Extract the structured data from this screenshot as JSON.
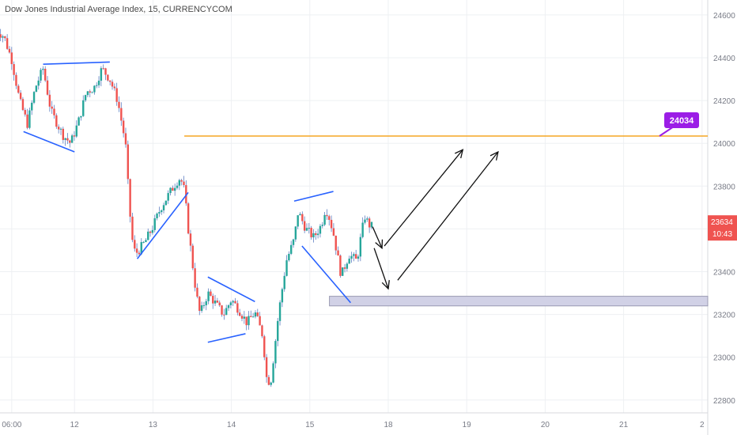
{
  "chart_data": {
    "type": "candlestick",
    "title": "Dow Jones Industrial Average Index, 15, CURRENCYCOM",
    "y_ticks": [
      24600,
      24400,
      24200,
      24000,
      23800,
      23600,
      23400,
      23200,
      23000,
      22800
    ],
    "ylim": [
      22740,
      24670
    ],
    "x_ticks": [
      {
        "label": "06:00",
        "t": 0.2
      },
      {
        "label": "12",
        "t": 1
      },
      {
        "label": "13",
        "t": 2
      },
      {
        "label": "14",
        "t": 3
      },
      {
        "label": "15",
        "t": 4
      },
      {
        "label": "18",
        "t": 5
      },
      {
        "label": "19",
        "t": 6
      },
      {
        "label": "20",
        "t": 7
      },
      {
        "label": "21",
        "t": 8
      },
      {
        "label": "2",
        "t": 9
      }
    ],
    "xlim": [
      0,
      9.0
    ],
    "price_path": [
      [
        0.0,
        24530
      ],
      [
        0.1,
        24500
      ],
      [
        0.2,
        24390
      ],
      [
        0.3,
        24200
      ],
      [
        0.4,
        24090
      ],
      [
        0.5,
        24260
      ],
      [
        0.6,
        24350
      ],
      [
        0.7,
        24150
      ],
      [
        0.85,
        24040
      ],
      [
        0.95,
        24000
      ],
      [
        1.05,
        24100
      ],
      [
        1.15,
        24240
      ],
      [
        1.25,
        24260
      ],
      [
        1.35,
        24350
      ],
      [
        1.45,
        24300
      ],
      [
        1.55,
        24200
      ],
      [
        1.65,
        24000
      ],
      [
        1.7,
        23700
      ],
      [
        1.75,
        23500
      ],
      [
        1.8,
        23490
      ],
      [
        1.9,
        23540
      ],
      [
        2.0,
        23610
      ],
      [
        2.1,
        23700
      ],
      [
        2.2,
        23760
      ],
      [
        2.3,
        23820
      ],
      [
        2.35,
        23840
      ],
      [
        2.4,
        23780
      ],
      [
        2.45,
        23600
      ],
      [
        2.5,
        23450
      ],
      [
        2.55,
        23300
      ],
      [
        2.6,
        23200
      ],
      [
        2.7,
        23300
      ],
      [
        2.8,
        23250
      ],
      [
        2.9,
        23200
      ],
      [
        3.0,
        23270
      ],
      [
        3.1,
        23220
      ],
      [
        3.2,
        23160
      ],
      [
        3.3,
        23210
      ],
      [
        3.4,
        23100
      ],
      [
        3.45,
        22900
      ],
      [
        3.5,
        22880
      ],
      [
        3.6,
        23200
      ],
      [
        3.7,
        23450
      ],
      [
        3.8,
        23550
      ],
      [
        3.85,
        23680
      ],
      [
        3.9,
        23640
      ],
      [
        3.95,
        23600
      ],
      [
        4.05,
        23560
      ],
      [
        4.15,
        23620
      ],
      [
        4.2,
        23700
      ],
      [
        4.25,
        23650
      ],
      [
        4.3,
        23580
      ],
      [
        4.35,
        23480
      ],
      [
        4.4,
        23380
      ],
      [
        4.5,
        23480
      ],
      [
        4.6,
        23450
      ],
      [
        4.65,
        23560
      ],
      [
        4.7,
        23660
      ],
      [
        4.75,
        23620
      ],
      [
        4.8,
        23610
      ]
    ],
    "annotations": {
      "resistance_line": {
        "value": 24034,
        "t_start": 2.4,
        "label": "24034"
      },
      "support_zone": {
        "low": 23240,
        "high": 23285,
        "t_start": 4.25
      },
      "last_price": {
        "value": 23634,
        "label": "23634",
        "countdown": "10:43"
      },
      "trendlines": [
        {
          "t1": 0.35,
          "v1": 24055,
          "t2": 1.0,
          "v2": 23960
        },
        {
          "t1": 0.6,
          "v1": 24370,
          "t2": 1.45,
          "v2": 24380
        },
        {
          "t1": 1.8,
          "v1": 23460,
          "t2": 2.45,
          "v2": 23770
        },
        {
          "t1": 2.7,
          "v1": 23375,
          "t2": 3.3,
          "v2": 23260
        },
        {
          "t1": 2.7,
          "v1": 23070,
          "t2": 3.18,
          "v2": 23110
        },
        {
          "t1": 3.8,
          "v1": 23730,
          "t2": 4.3,
          "v2": 23775
        },
        {
          "t1": 3.9,
          "v1": 23520,
          "t2": 4.52,
          "v2": 23255
        }
      ],
      "arrows": [
        {
          "t1": 4.8,
          "v1": 23610,
          "t2": 4.92,
          "v2": 23510
        },
        {
          "t1": 4.95,
          "v1": 23520,
          "t2": 5.95,
          "v2": 23970
        },
        {
          "t1": 4.82,
          "v1": 23510,
          "t2": 5.0,
          "v2": 23320
        },
        {
          "t1": 5.12,
          "v1": 23360,
          "t2": 6.4,
          "v2": 23960
        }
      ]
    },
    "colors": {
      "up": "#26a69a",
      "down": "#ef5350",
      "wick": "#5e7fc2",
      "resistance": "#f5a623",
      "trend": "#2962ff",
      "zone_fill": "#d1d1e6",
      "zone_stroke": "#9a9ab3",
      "label_purple": "#9b1de6",
      "price_tag": "#ef5350",
      "grid": "#eef0f3",
      "axis_text": "#787b86"
    }
  }
}
